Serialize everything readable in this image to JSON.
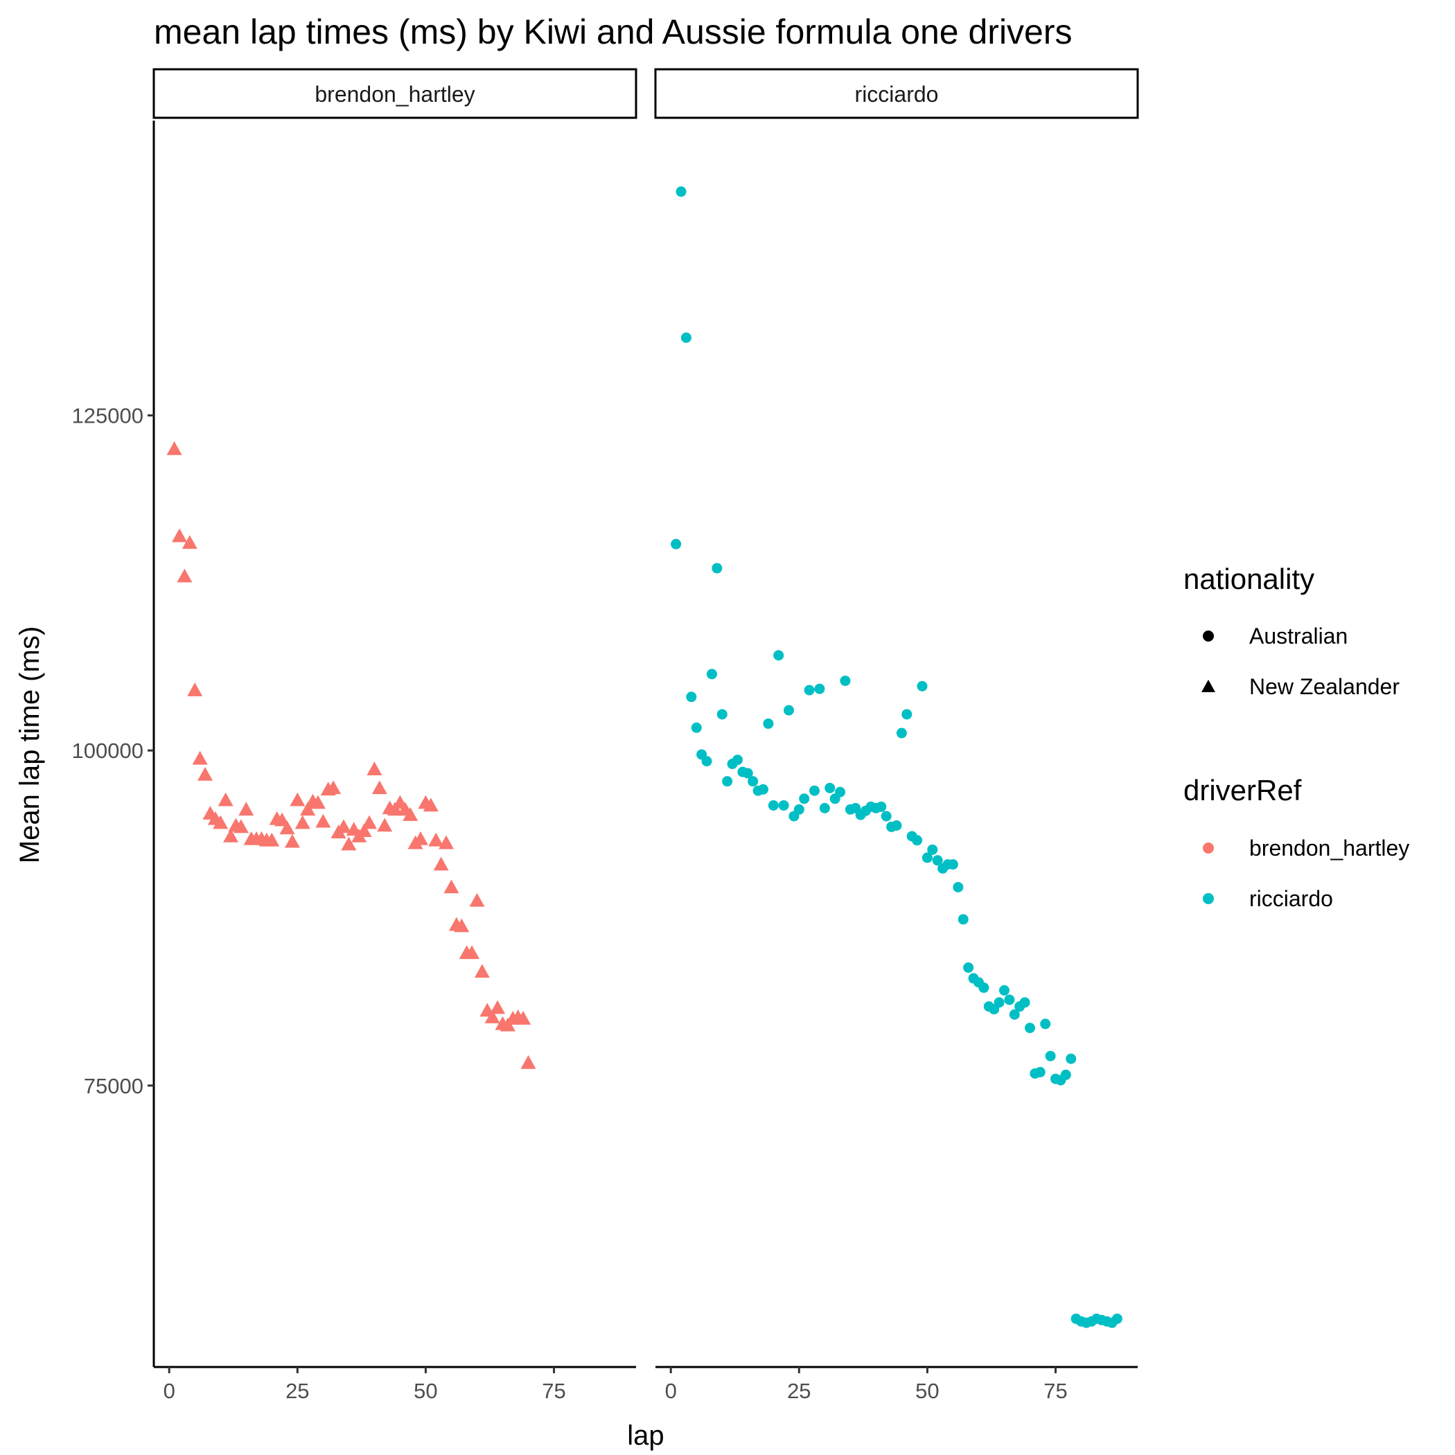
{
  "chart_data": {
    "type": "scatter",
    "title": "mean lap times (ms) by Kiwi and Aussie formula one drivers",
    "xlabel": "lap",
    "ylabel": "Mean lap time (ms)",
    "xlim": [
      -3,
      91
    ],
    "ylim": [
      54000,
      147000
    ],
    "x_ticks": [
      0,
      25,
      50,
      75
    ],
    "y_ticks": [
      75000,
      100000,
      125000
    ],
    "grid": false,
    "facets": [
      {
        "label": "brendon_hartley",
        "nationality": "New Zealander",
        "color": "#F8766D",
        "shape": "triangle",
        "points": [
          [
            1,
            122500
          ],
          [
            2,
            116000
          ],
          [
            3,
            113000
          ],
          [
            4,
            115500
          ],
          [
            5,
            104500
          ],
          [
            6,
            99400
          ],
          [
            7,
            98200
          ],
          [
            8,
            95300
          ],
          [
            9,
            94900
          ],
          [
            10,
            94600
          ],
          [
            11,
            96300
          ],
          [
            12,
            93600
          ],
          [
            13,
            94400
          ],
          [
            14,
            94300
          ],
          [
            15,
            95600
          ],
          [
            16,
            93400
          ],
          [
            17,
            93400
          ],
          [
            18,
            93400
          ],
          [
            19,
            93300
          ],
          [
            20,
            93300
          ],
          [
            21,
            94900
          ],
          [
            22,
            94800
          ],
          [
            23,
            94200
          ],
          [
            24,
            93200
          ],
          [
            25,
            96300
          ],
          [
            26,
            94600
          ],
          [
            27,
            95600
          ],
          [
            28,
            96200
          ],
          [
            29,
            96100
          ],
          [
            30,
            94700
          ],
          [
            31,
            97100
          ],
          [
            32,
            97200
          ],
          [
            33,
            93900
          ],
          [
            34,
            94300
          ],
          [
            35,
            93000
          ],
          [
            36,
            94100
          ],
          [
            37,
            93600
          ],
          [
            38,
            94000
          ],
          [
            39,
            94600
          ],
          [
            40,
            98600
          ],
          [
            41,
            97200
          ],
          [
            42,
            94400
          ],
          [
            43,
            95700
          ],
          [
            44,
            95600
          ],
          [
            45,
            96100
          ],
          [
            46,
            95600
          ],
          [
            47,
            95200
          ],
          [
            48,
            93100
          ],
          [
            49,
            93400
          ],
          [
            50,
            96100
          ],
          [
            51,
            95900
          ],
          [
            52,
            93300
          ],
          [
            53,
            91500
          ],
          [
            54,
            93100
          ],
          [
            55,
            89800
          ],
          [
            56,
            87000
          ],
          [
            57,
            86900
          ],
          [
            58,
            84900
          ],
          [
            59,
            84900
          ],
          [
            60,
            88800
          ],
          [
            61,
            83500
          ],
          [
            62,
            80600
          ],
          [
            63,
            80100
          ],
          [
            64,
            80800
          ],
          [
            65,
            79600
          ],
          [
            66,
            79500
          ],
          [
            67,
            80000
          ],
          [
            68,
            80100
          ],
          [
            69,
            80000
          ],
          [
            70,
            76700
          ]
        ]
      },
      {
        "label": "ricciardo",
        "nationality": "Australian",
        "color": "#00BFC4",
        "shape": "circle",
        "points": [
          [
            1,
            115400
          ],
          [
            2,
            141700
          ],
          [
            3,
            130800
          ],
          [
            4,
            104000
          ],
          [
            5,
            101700
          ],
          [
            6,
            99700
          ],
          [
            7,
            99200
          ],
          [
            8,
            105700
          ],
          [
            9,
            113600
          ],
          [
            10,
            102700
          ],
          [
            11,
            97700
          ],
          [
            12,
            99000
          ],
          [
            13,
            99300
          ],
          [
            14,
            98400
          ],
          [
            15,
            98300
          ],
          [
            16,
            97700
          ],
          [
            17,
            97000
          ],
          [
            18,
            97100
          ],
          [
            19,
            102000
          ],
          [
            20,
            95900
          ],
          [
            21,
            107100
          ],
          [
            22,
            95900
          ],
          [
            23,
            103000
          ],
          [
            24,
            95100
          ],
          [
            25,
            95600
          ],
          [
            26,
            96400
          ],
          [
            27,
            104500
          ],
          [
            28,
            97000
          ],
          [
            29,
            104600
          ],
          [
            30,
            95700
          ],
          [
            31,
            97200
          ],
          [
            32,
            96400
          ],
          [
            33,
            96900
          ],
          [
            34,
            105200
          ],
          [
            35,
            95600
          ],
          [
            36,
            95700
          ],
          [
            37,
            95200
          ],
          [
            38,
            95500
          ],
          [
            39,
            95800
          ],
          [
            40,
            95700
          ],
          [
            41,
            95800
          ],
          [
            42,
            95100
          ],
          [
            43,
            94300
          ],
          [
            44,
            94400
          ],
          [
            45,
            101300
          ],
          [
            46,
            102700
          ],
          [
            47,
            93600
          ],
          [
            48,
            93300
          ],
          [
            49,
            104800
          ],
          [
            50,
            92000
          ],
          [
            51,
            92600
          ],
          [
            52,
            91800
          ],
          [
            53,
            91200
          ],
          [
            54,
            91500
          ],
          [
            55,
            91500
          ],
          [
            56,
            89800
          ],
          [
            57,
            87400
          ],
          [
            58,
            83800
          ],
          [
            59,
            83000
          ],
          [
            60,
            82700
          ],
          [
            61,
            82300
          ],
          [
            62,
            80900
          ],
          [
            63,
            80700
          ],
          [
            64,
            81200
          ],
          [
            65,
            82100
          ],
          [
            66,
            81400
          ],
          [
            67,
            80300
          ],
          [
            68,
            80900
          ],
          [
            69,
            81200
          ],
          [
            70,
            79300
          ],
          [
            71,
            75900
          ],
          [
            72,
            76000
          ],
          [
            73,
            79600
          ],
          [
            74,
            77200
          ],
          [
            75,
            75500
          ],
          [
            76,
            75400
          ],
          [
            77,
            75800
          ],
          [
            78,
            77000
          ],
          [
            79,
            57600
          ],
          [
            80,
            57400
          ],
          [
            81,
            57300
          ],
          [
            82,
            57400
          ],
          [
            83,
            57600
          ],
          [
            84,
            57500
          ],
          [
            85,
            57400
          ],
          [
            86,
            57300
          ],
          [
            87,
            57600
          ]
        ]
      }
    ],
    "legends": [
      {
        "title": "nationality",
        "items": [
          {
            "label": "Australian",
            "shape": "circle",
            "color": "#000000"
          },
          {
            "label": "New Zealander",
            "shape": "triangle",
            "color": "#000000"
          }
        ]
      },
      {
        "title": "driverRef",
        "items": [
          {
            "label": "brendon_hartley",
            "shape": "circle",
            "color": "#F8766D"
          },
          {
            "label": "ricciardo",
            "shape": "circle",
            "color": "#00BFC4"
          }
        ]
      }
    ],
    "legend_position": "right"
  }
}
